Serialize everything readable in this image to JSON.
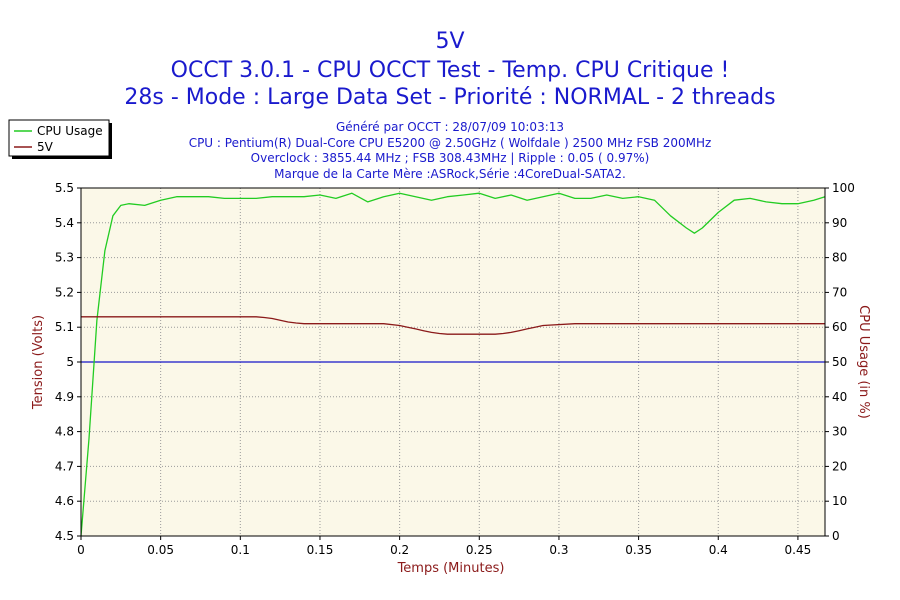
{
  "chart_data": {
    "type": "line",
    "title_lines": [
      "5V",
      "OCCT 3.0.1 - CPU OCCT Test - Temp. CPU Critique !",
      "28s - Mode : Large Data Set - Priorité : NORMAL - 2 threads"
    ],
    "info_lines": [
      "Généré par OCCT : 28/07/09 10:03:13",
      "CPU : Pentium(R) Dual-Core CPU E5200 @ 2.50GHz ( Wolfdale ) 2500 MHz FSB 200MHz",
      "Overclock : 3855.44 MHz ; FSB 308.43MHz | Ripple : 0.05 ( 0.97%)",
      "Marque de la Carte Mère :ASRock,Série :4CoreDual-SATA2."
    ],
    "xlabel": "Temps (Minutes)",
    "ylabel_left": "Tension (Volts)",
    "ylabel_right": "CPU Usage (in %)",
    "xlim": [
      0,
      0.467
    ],
    "ylim_left": [
      4.5,
      5.5
    ],
    "ylim_right": [
      0,
      100
    ],
    "x_ticks": [
      "0",
      "0.05",
      "0.1",
      "0.15",
      "0.2",
      "0.25",
      "0.3",
      "0.35",
      "0.4",
      "0.45"
    ],
    "y_ticks_left": [
      "4.5",
      "4.6",
      "4.7",
      "4.8",
      "4.9",
      "5",
      "5.1",
      "5.2",
      "5.3",
      "5.4",
      "5.5"
    ],
    "y_ticks_right": [
      "0",
      "10",
      "20",
      "30",
      "40",
      "50",
      "60",
      "70",
      "80",
      "90",
      "100"
    ],
    "grid": true,
    "legend_position": "top-left",
    "reference_line": {
      "y": 5.0,
      "color": "#1515c8"
    },
    "series": [
      {
        "name": "CPU Usage",
        "axis": "right",
        "color": "#22cc22",
        "x": [
          0,
          0.005,
          0.01,
          0.015,
          0.02,
          0.025,
          0.03,
          0.04,
          0.05,
          0.06,
          0.07,
          0.08,
          0.09,
          0.1,
          0.11,
          0.12,
          0.13,
          0.14,
          0.15,
          0.16,
          0.17,
          0.18,
          0.19,
          0.2,
          0.21,
          0.22,
          0.23,
          0.24,
          0.25,
          0.26,
          0.27,
          0.28,
          0.29,
          0.3,
          0.31,
          0.32,
          0.33,
          0.34,
          0.35,
          0.36,
          0.37,
          0.38,
          0.385,
          0.39,
          0.4,
          0.41,
          0.42,
          0.43,
          0.44,
          0.45,
          0.46,
          0.467
        ],
        "values": [
          0,
          28,
          62,
          82,
          92,
          95,
          95.5,
          95,
          96.5,
          97.5,
          97.5,
          97.5,
          97,
          97,
          97,
          97.5,
          97.5,
          97.5,
          98,
          97,
          98.5,
          96,
          97.5,
          98.5,
          97.5,
          96.5,
          97.5,
          98,
          98.5,
          97,
          98,
          96.5,
          97.5,
          98.5,
          97,
          97,
          98,
          97,
          97.5,
          96.5,
          92,
          88.5,
          87,
          88.5,
          93,
          96.5,
          97,
          96,
          95.5,
          95.5,
          96.5,
          97.5
        ]
      },
      {
        "name": "5V",
        "axis": "left",
        "color": "#8b1a1a",
        "x": [
          0,
          0.02,
          0.04,
          0.06,
          0.08,
          0.1,
          0.105,
          0.11,
          0.115,
          0.12,
          0.125,
          0.13,
          0.135,
          0.14,
          0.16,
          0.18,
          0.19,
          0.2,
          0.205,
          0.21,
          0.215,
          0.22,
          0.225,
          0.23,
          0.25,
          0.26,
          0.265,
          0.27,
          0.275,
          0.28,
          0.285,
          0.29,
          0.31,
          0.35,
          0.4,
          0.45,
          0.467
        ],
        "values": [
          5.13,
          5.13,
          5.13,
          5.13,
          5.13,
          5.13,
          5.13,
          5.13,
          5.128,
          5.125,
          5.12,
          5.115,
          5.112,
          5.11,
          5.11,
          5.11,
          5.11,
          5.105,
          5.1,
          5.095,
          5.09,
          5.085,
          5.082,
          5.08,
          5.08,
          5.08,
          5.082,
          5.085,
          5.09,
          5.095,
          5.1,
          5.105,
          5.11,
          5.11,
          5.11,
          5.11,
          5.11
        ]
      }
    ]
  }
}
